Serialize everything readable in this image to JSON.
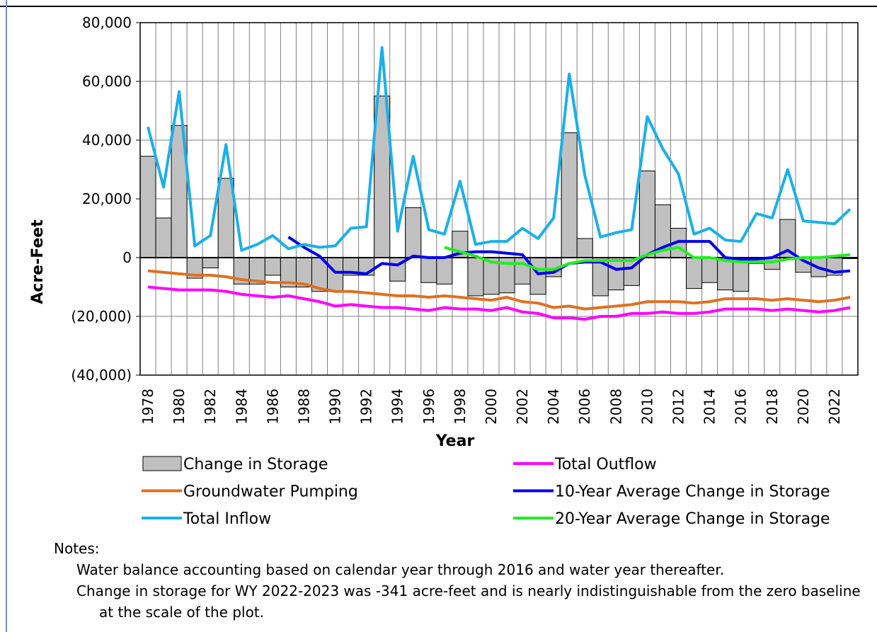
{
  "chart_data": {
    "type": "bar",
    "ylabel": "Acre-Feet",
    "xlabel": "Year",
    "categories": [
      "1978",
      null,
      "1980",
      null,
      "1982",
      null,
      "1984",
      null,
      "1986",
      null,
      "1988",
      null,
      "1990",
      null,
      "1992",
      null,
      "1994",
      null,
      "1996",
      null,
      "1998",
      null,
      "2000",
      null,
      "2002",
      null,
      "2004",
      null,
      "2006",
      null,
      "2008",
      null,
      "2010",
      null,
      "2012",
      null,
      "2014",
      null,
      "2016",
      null,
      "2018",
      null,
      "2020",
      null,
      "2022",
      null
    ],
    "ylim": [
      -40000,
      80000
    ],
    "yticks": [
      {
        "value": -40000,
        "label": "(40,000)"
      },
      {
        "value": -20000,
        "label": "(20,000)"
      },
      0,
      {
        "value": 20000,
        "label": "20,000"
      },
      {
        "value": 40000,
        "label": "40,000"
      },
      {
        "value": 60000,
        "label": "60,000"
      },
      {
        "value": 80000,
        "label": "80,000"
      }
    ],
    "grid": true,
    "series": [
      {
        "name": "Change in Storage",
        "type": "bar",
        "color": "#c0c0c0",
        "values": [
          34500,
          13500,
          45000,
          -7000,
          -3500,
          27000,
          -9000,
          -9000,
          -6000,
          -10000,
          -10000,
          -11500,
          -11500,
          -6000,
          -6000,
          55000,
          -8000,
          17000,
          -8500,
          -9000,
          9000,
          -13000,
          -12500,
          -12000,
          -9000,
          -12500,
          -6500,
          42500,
          6500,
          -13000,
          -11000,
          -9500,
          29500,
          18000,
          10000,
          -10500,
          -8500,
          -11000,
          -11500,
          -2000,
          -4000,
          13000,
          -5000,
          -6500,
          -6000,
          -341
        ]
      },
      {
        "name": "Total Outflow",
        "type": "line",
        "color": "#ff00ff",
        "values": [
          -10000,
          -10500,
          -11000,
          -11000,
          -11000,
          -11500,
          -12500,
          -13000,
          -13500,
          -13000,
          -14000,
          -15000,
          -16500,
          -16000,
          -16500,
          -17000,
          -17000,
          -17500,
          -18000,
          -17000,
          -17500,
          -17500,
          -18000,
          -17000,
          -18500,
          -19000,
          -20500,
          -20500,
          -21000,
          -20000,
          -20000,
          -19000,
          -19000,
          -18500,
          -19000,
          -19000,
          -18500,
          -17500,
          -17500,
          -17500,
          -18000,
          -17500,
          -18000,
          -18500,
          -18000,
          -17000
        ]
      },
      {
        "name": "Groundwater Pumping",
        "type": "line",
        "color": "#e07020",
        "values": [
          -4500,
          -5000,
          -5500,
          -6000,
          -6000,
          -6500,
          -7500,
          -8000,
          -8500,
          -8500,
          -9000,
          -10500,
          -11500,
          -11500,
          -12000,
          -12500,
          -13000,
          -13000,
          -13500,
          -13000,
          -13500,
          -14000,
          -14500,
          -13500,
          -15000,
          -15500,
          -17000,
          -16500,
          -17500,
          -17000,
          -16500,
          -16000,
          -15000,
          -15000,
          -15000,
          -15500,
          -15000,
          -14000,
          -14000,
          -14000,
          -14500,
          -14000,
          -14500,
          -15000,
          -14500,
          -13500
        ]
      },
      {
        "name": "10-Year Average Change in Storage",
        "type": "line",
        "color": "#0000ee",
        "values": [
          null,
          null,
          null,
          null,
          null,
          null,
          null,
          null,
          null,
          7000,
          3500,
          500,
          -5000,
          -5000,
          -5500,
          -2000,
          -2500,
          500,
          0,
          0,
          1500,
          2000,
          2000,
          1500,
          1000,
          -5500,
          -5000,
          -2000,
          -1500,
          -1500,
          -4000,
          -3500,
          1000,
          3500,
          5500,
          5500,
          5500,
          0,
          -500,
          -500,
          0,
          2500,
          -1000,
          -3500,
          -5000,
          -4500
        ]
      },
      {
        "name": "Total Inflow",
        "type": "line",
        "color": "#1ab0ea",
        "values": [
          44500,
          24000,
          56500,
          4000,
          7500,
          38500,
          2500,
          4500,
          7500,
          3000,
          4500,
          3500,
          4000,
          10000,
          10500,
          71500,
          9000,
          34500,
          9500,
          8000,
          26000,
          4500,
          5500,
          5500,
          10000,
          6500,
          13500,
          62500,
          28000,
          7000,
          8500,
          9500,
          48000,
          37000,
          28500,
          8000,
          10000,
          6000,
          5500,
          15000,
          13500,
          30000,
          12500,
          12000,
          11500,
          16500
        ]
      },
      {
        "name": "20-Year Average Change in Storage",
        "type": "line",
        "color": "#22ee22",
        "values": [
          null,
          null,
          null,
          null,
          null,
          null,
          null,
          null,
          null,
          null,
          null,
          null,
          null,
          null,
          null,
          null,
          null,
          null,
          null,
          3500,
          2000,
          500,
          -1500,
          -2000,
          -2000,
          -4000,
          -4000,
          -2000,
          -1000,
          -1000,
          -1000,
          -1000,
          1000,
          2500,
          3500,
          0,
          0,
          -1000,
          -1500,
          -1500,
          -1500,
          -500,
          0,
          0,
          500,
          1000
        ]
      }
    ]
  },
  "notes": {
    "heading": "Notes:",
    "items": [
      "Water balance accounting based on calendar year through 2016 and water year thereafter.",
      "Change in storage for WY 2022-2023 was -341 acre-feet and is nearly indistinguishable from the zero baseline at the scale of the plot."
    ]
  }
}
